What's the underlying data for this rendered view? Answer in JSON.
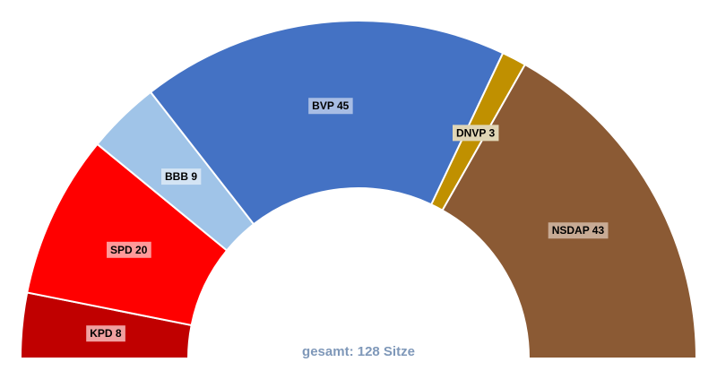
{
  "chart_data": {
    "type": "parliament",
    "total_label": "gesamt: 128 Sitze",
    "total_seats": 128,
    "series": [
      {
        "name": "KPD",
        "value": 8,
        "label": "KPD 8",
        "color": "#c00000",
        "label_bg": "#f0a0a0"
      },
      {
        "name": "SPD",
        "value": 20,
        "label": "SPD 20",
        "color": "#ff0000",
        "label_bg": "#ff9a9a"
      },
      {
        "name": "BBB",
        "value": 9,
        "label": "BBB 9",
        "color": "#a0c4e8",
        "label_bg": "#d4e4f4"
      },
      {
        "name": "BVP",
        "value": 45,
        "label": "BVP 45",
        "color": "#4472c4",
        "label_bg": "#a8bde4"
      },
      {
        "name": "DNVP",
        "value": 3,
        "label": "DNVP 3",
        "color": "#c09000",
        "label_bg": "#e0d6b6"
      },
      {
        "name": "NSDAP",
        "value": 43,
        "label": "NSDAP 43",
        "color": "#8b5a34",
        "label_bg": "#c8ab95"
      }
    ]
  }
}
